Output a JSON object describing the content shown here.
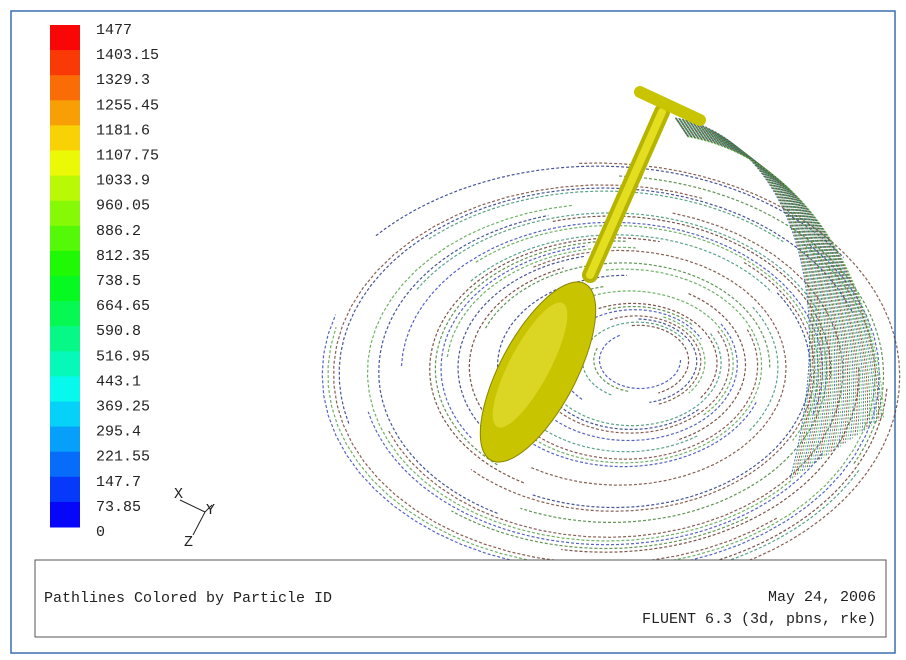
{
  "colorbar": {
    "labels": [
      "1477",
      "1403.15",
      "1329.3",
      "1255.45",
      "1181.6",
      "1107.75",
      "1033.9",
      "960.05",
      "886.2",
      "812.35",
      "738.5",
      "664.65",
      "590.8",
      "516.95",
      "443.1",
      "369.25",
      "295.4",
      "221.55",
      "147.7",
      "73.85",
      "0"
    ]
  },
  "axes": {
    "x": "X",
    "y": "Y",
    "z": "Z"
  },
  "footer": {
    "title": "Pathlines Colored by Particle ID",
    "date": "May 24, 2006",
    "version": "FLUENT 6.3 (3d, pbns, rke)"
  }
}
